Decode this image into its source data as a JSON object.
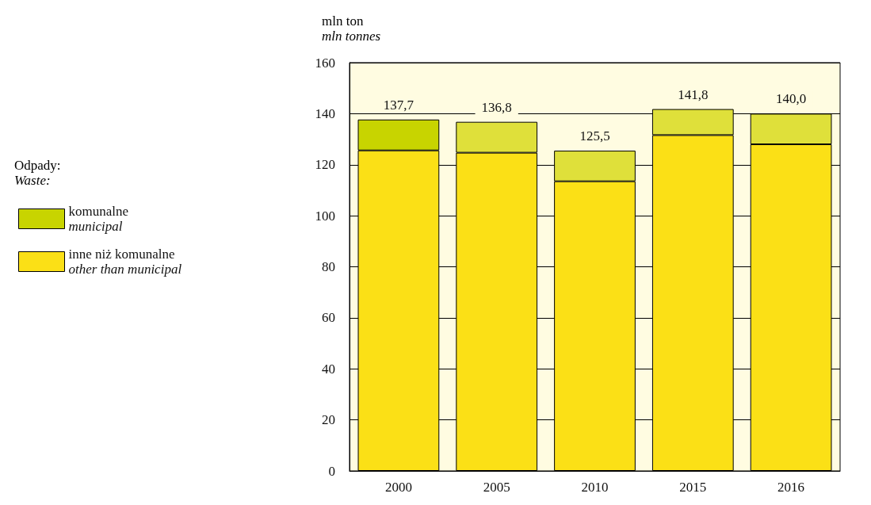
{
  "chart_data": {
    "type": "bar",
    "stacked": true,
    "ylabel": "mln ton\nmln tonnes",
    "legend_title": "Odpady:\nWaste:",
    "categories": [
      "2000",
      "2005",
      "2010",
      "2015",
      "2016"
    ],
    "series": [
      {
        "name": "inne niż komunalne\nother than municipal",
        "color": "#fbe016",
        "values": [
          125.6,
          124.7,
          113.5,
          131.6,
          128.0
        ]
      },
      {
        "name": "komunalne\nmunicipal",
        "color": "#c8d400",
        "colors": [
          "#c8d400",
          "#dfe03a",
          "#dfe03a",
          "#dfe03a",
          "#dfe03a"
        ],
        "values": [
          12.1,
          12.1,
          12.0,
          10.2,
          12.0
        ]
      }
    ],
    "totals": [
      "137,7",
      "136,8",
      "125,5",
      "141,8",
      "140,0"
    ],
    "ylim": [
      0,
      160
    ],
    "yticks": [
      0,
      20,
      40,
      60,
      80,
      100,
      120,
      140,
      160
    ],
    "grid": "y",
    "legend": "left"
  }
}
